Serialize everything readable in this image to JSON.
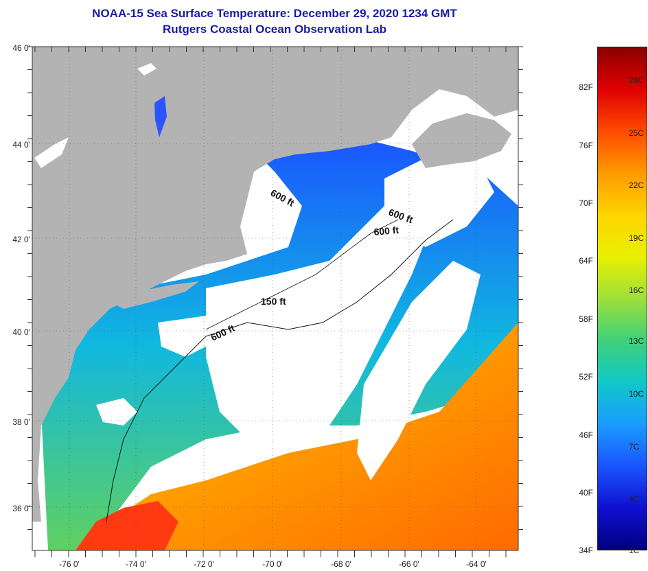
{
  "title": {
    "line1": "NOAA-15 Sea Surface Temperature:  December 29, 2020 1234 GMT",
    "line2": "Rutgers Coastal Ocean Observation Lab"
  },
  "map": {
    "lat_labels": [
      "46 0'",
      "44 0'",
      "42 0'",
      "40 0'",
      "38 0'",
      "36 0'"
    ],
    "lon_labels": [
      "-76 0'",
      "-74 0'",
      "-72 0'",
      "-70 0'",
      "-68 0'",
      "-66 0'",
      "-64 0'"
    ],
    "depth_labels": [
      "600 ft",
      "600 ft",
      "600 ft",
      "150 ft",
      "600 ft"
    ]
  },
  "colorbar": {
    "fahrenheit": [
      "82F",
      "76F",
      "70F",
      "64F",
      "58F",
      "52F",
      "46F",
      "40F",
      "34F"
    ],
    "celsius": [
      "28C",
      "25C",
      "22C",
      "19C",
      "16C",
      "13C",
      "10C",
      "7C",
      "4C",
      "1C"
    ],
    "colors": [
      "#8b0000",
      "#e00000",
      "#ff4a00",
      "#ff9a00",
      "#ffd400",
      "#e8f000",
      "#9ee03a",
      "#3fd07a",
      "#10c8c8",
      "#1a9cff",
      "#1a55ff",
      "#1010d0",
      "#000080"
    ]
  },
  "legend": {
    "land": "#b3b3b3",
    "cloud": "#ffffff"
  }
}
